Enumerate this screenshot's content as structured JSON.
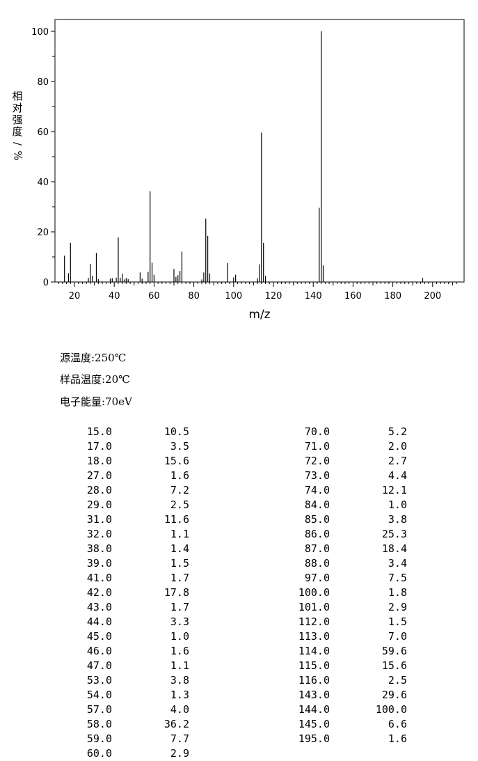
{
  "chart_data": {
    "type": "bar",
    "xlabel": "m/z",
    "ylabel": "相对强度/%",
    "xlim": [
      10,
      213
    ],
    "ylim": [
      0,
      100
    ],
    "xticks": [
      20,
      40,
      60,
      80,
      100,
      120,
      140,
      160,
      180,
      200
    ],
    "yticks": [
      0,
      20,
      40,
      60,
      80,
      100
    ],
    "x": [
      15,
      17,
      18,
      27,
      28,
      29,
      31,
      32,
      38,
      39,
      41,
      42,
      43,
      44,
      45,
      46,
      47,
      53,
      54,
      57,
      58,
      59,
      60,
      70,
      71,
      72,
      73,
      74,
      84,
      85,
      86,
      87,
      88,
      97,
      100,
      101,
      112,
      113,
      114,
      115,
      116,
      143,
      144,
      145,
      195
    ],
    "values": [
      10.5,
      3.5,
      15.6,
      1.6,
      7.2,
      2.5,
      11.6,
      1.1,
      1.4,
      1.5,
      1.7,
      17.8,
      1.7,
      3.3,
      1.0,
      1.6,
      1.1,
      3.8,
      1.3,
      4.0,
      36.2,
      7.7,
      2.9,
      5.2,
      2.0,
      2.7,
      4.4,
      12.1,
      1.0,
      3.8,
      25.3,
      18.4,
      3.4,
      7.5,
      1.8,
      2.9,
      1.5,
      7.0,
      59.6,
      15.6,
      2.5,
      29.6,
      100.0,
      6.6,
      1.6
    ]
  },
  "conditions": {
    "source_temp": "源温度:250℃",
    "sample_temp": "样品温度:20℃",
    "electron_energy": "电子能量:70eV"
  },
  "peak_table": {
    "left": [
      [
        "15.0",
        "10.5"
      ],
      [
        "17.0",
        "3.5"
      ],
      [
        "18.0",
        "15.6"
      ],
      [
        "27.0",
        "1.6"
      ],
      [
        "28.0",
        "7.2"
      ],
      [
        "29.0",
        "2.5"
      ],
      [
        "31.0",
        "11.6"
      ],
      [
        "32.0",
        "1.1"
      ],
      [
        "38.0",
        "1.4"
      ],
      [
        "39.0",
        "1.5"
      ],
      [
        "41.0",
        "1.7"
      ],
      [
        "42.0",
        "17.8"
      ],
      [
        "43.0",
        "1.7"
      ],
      [
        "44.0",
        "3.3"
      ],
      [
        "45.0",
        "1.0"
      ],
      [
        "46.0",
        "1.6"
      ],
      [
        "47.0",
        "1.1"
      ],
      [
        "53.0",
        "3.8"
      ],
      [
        "54.0",
        "1.3"
      ],
      [
        "57.0",
        "4.0"
      ],
      [
        "58.0",
        "36.2"
      ],
      [
        "59.0",
        "7.7"
      ],
      [
        "60.0",
        "2.9"
      ]
    ],
    "right": [
      [
        "70.0",
        "5.2"
      ],
      [
        "71.0",
        "2.0"
      ],
      [
        "72.0",
        "2.7"
      ],
      [
        "73.0",
        "4.4"
      ],
      [
        "74.0",
        "12.1"
      ],
      [
        "84.0",
        "1.0"
      ],
      [
        "85.0",
        "3.8"
      ],
      [
        "86.0",
        "25.3"
      ],
      [
        "87.0",
        "18.4"
      ],
      [
        "88.0",
        "3.4"
      ],
      [
        "97.0",
        "7.5"
      ],
      [
        "100.0",
        "1.8"
      ],
      [
        "101.0",
        "2.9"
      ],
      [
        "112.0",
        "1.5"
      ],
      [
        "113.0",
        "7.0"
      ],
      [
        "114.0",
        "59.6"
      ],
      [
        "115.0",
        "15.6"
      ],
      [
        "116.0",
        "2.5"
      ],
      [
        "143.0",
        "29.6"
      ],
      [
        "144.0",
        "100.0"
      ],
      [
        "145.0",
        "6.6"
      ],
      [
        "195.0",
        "1.6"
      ]
    ]
  }
}
